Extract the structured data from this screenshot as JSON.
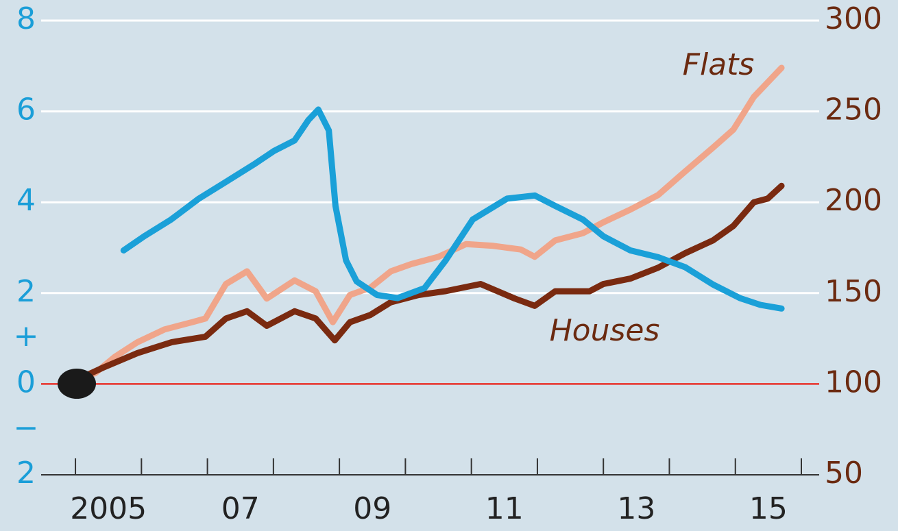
{
  "chart_data": {
    "type": "line",
    "xlim": [
      2004.48,
      2016.27
    ],
    "xticks": [
      {
        "value": 2005.5,
        "label": "2005"
      },
      {
        "value": 2007.5,
        "label": "07"
      },
      {
        "value": 2009.5,
        "label": "09"
      },
      {
        "value": 2011.5,
        "label": "11"
      },
      {
        "value": 2013.5,
        "label": "13"
      },
      {
        "value": 2015.5,
        "label": "15"
      }
    ],
    "xminor_ticks": [
      2005,
      2006,
      2007,
      2008,
      2009,
      2010,
      2011,
      2012,
      2013,
      2014,
      2015,
      2016
    ],
    "ylim": [
      -2,
      8
    ],
    "yticks": [
      {
        "value": -2,
        "label": "2"
      },
      0,
      2,
      4,
      6,
      8
    ],
    "y2lim": [
      50,
      300
    ],
    "y2ticks": [
      50,
      100,
      150,
      200,
      250,
      300
    ],
    "sign_labels": [
      "+",
      "−"
    ],
    "grid": true,
    "series": [
      {
        "name": "Flats",
        "color": "#f0a58a",
        "axis": "y2",
        "x": [
          2005.0,
          2005.3,
          2005.6,
          2005.94,
          2006.35,
          2006.77,
          2006.97,
          2007.28,
          2007.6,
          2007.9,
          2008.32,
          2008.64,
          2008.9,
          2009.16,
          2009.47,
          2009.78,
          2010.09,
          2010.5,
          2010.92,
          2011.33,
          2011.75,
          2011.96,
          2012.27,
          2012.69,
          2013.0,
          2013.41,
          2013.83,
          2014.24,
          2014.66,
          2014.97,
          2015.28,
          2015.49,
          2015.7
        ],
        "values": [
          102,
          106,
          115,
          123,
          130,
          134,
          136,
          155,
          162,
          147,
          157,
          151,
          134,
          149,
          153,
          162,
          166,
          170,
          177,
          176,
          174,
          170,
          179,
          183,
          189,
          196,
          204,
          217,
          230,
          240,
          258,
          266,
          274
        ]
      },
      {
        "name": "Houses",
        "color": "#7a2a10",
        "axis": "y2",
        "x": [
          2005.0,
          2005.42,
          2005.94,
          2006.46,
          2006.97,
          2007.28,
          2007.6,
          2007.9,
          2008.32,
          2008.64,
          2008.93,
          2009.16,
          2009.47,
          2009.78,
          2010.2,
          2010.6,
          2011.14,
          2011.66,
          2011.96,
          2012.27,
          2012.79,
          2013.0,
          2013.41,
          2013.83,
          2014.24,
          2014.66,
          2014.97,
          2015.28,
          2015.49,
          2015.7
        ],
        "values": [
          102,
          109,
          117,
          123,
          126,
          136,
          140,
          132,
          140,
          136,
          124,
          134,
          138,
          145,
          149,
          151,
          155,
          147,
          143,
          151,
          151,
          155,
          158,
          164,
          172,
          179,
          187,
          200,
          202,
          209
        ]
      },
      {
        "color": "#1aa0d8",
        "x": [
          2005.73,
          2006.04,
          2006.45,
          2006.87,
          2007.28,
          2007.7,
          2008.01,
          2008.32,
          2008.53,
          2008.68,
          2008.84,
          2008.94,
          2009.1,
          2009.26,
          2009.57,
          2009.88,
          2010.29,
          2010.61,
          2011.02,
          2011.54,
          2011.96,
          2012.27,
          2012.69,
          2013.0,
          2013.41,
          2013.83,
          2014.24,
          2014.66,
          2015.07,
          2015.38,
          2015.7
        ],
        "values": [
          2.94,
          3.25,
          3.62,
          4.08,
          4.45,
          4.83,
          5.13,
          5.36,
          5.81,
          6.04,
          5.58,
          3.92,
          2.72,
          2.26,
          1.96,
          1.89,
          2.11,
          2.72,
          3.62,
          4.08,
          4.15,
          3.92,
          3.62,
          3.25,
          2.94,
          2.79,
          2.57,
          2.19,
          1.89,
          1.74,
          1.66
        ]
      }
    ]
  }
}
